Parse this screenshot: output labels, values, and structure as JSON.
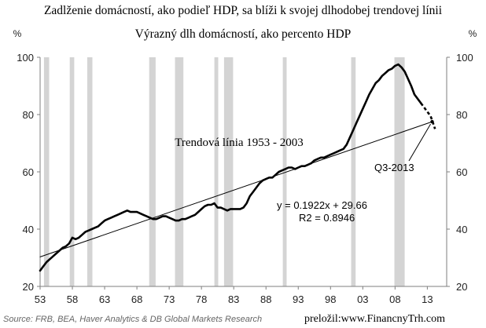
{
  "chart_data": {
    "type": "line",
    "title": "Zadlženie domácností, ako podieľ HDP, sa blíži k svojej dlhodobej trendovej línii",
    "subtitle": "Výrazný dlh domácností, ako percento HDP",
    "y_unit_left": "%",
    "y_unit_right": "%",
    "xlim": [
      1953,
      2016
    ],
    "ylim": [
      20,
      100
    ],
    "x_ticks": [
      {
        "value": 1953,
        "label": "53"
      },
      {
        "value": 1958,
        "label": "58"
      },
      {
        "value": 1963,
        "label": "63"
      },
      {
        "value": 1968,
        "label": "68"
      },
      {
        "value": 1973,
        "label": "73"
      },
      {
        "value": 1978,
        "label": "78"
      },
      {
        "value": 1983,
        "label": "83"
      },
      {
        "value": 1988,
        "label": "88"
      },
      {
        "value": 1993,
        "label": "93"
      },
      {
        "value": 1998,
        "label": "98"
      },
      {
        "value": 2003,
        "label": "03"
      },
      {
        "value": 2008,
        "label": "08"
      },
      {
        "value": 2013,
        "label": "13"
      }
    ],
    "y_ticks": [
      {
        "value": 20,
        "label": "20"
      },
      {
        "value": 40,
        "label": "40"
      },
      {
        "value": 60,
        "label": "60"
      },
      {
        "value": 80,
        "label": "80"
      },
      {
        "value": 100,
        "label": "100"
      }
    ],
    "recessions": [
      [
        1953.6,
        1954.4
      ],
      [
        1957.6,
        1958.3
      ],
      [
        1960.3,
        1961.1
      ],
      [
        1969.9,
        1970.9
      ],
      [
        1973.9,
        1975.2
      ],
      [
        1980.0,
        1980.6
      ],
      [
        1981.5,
        1982.9
      ],
      [
        1990.6,
        1991.2
      ],
      [
        2001.2,
        2001.9
      ],
      [
        2007.9,
        2009.5
      ]
    ],
    "series": [
      {
        "role": "debt",
        "style": "solid",
        "points": [
          [
            1953.0,
            25.5
          ],
          [
            1953.5,
            27.0
          ],
          [
            1954.0,
            28.5
          ],
          [
            1954.5,
            29.5
          ],
          [
            1955.0,
            30.5
          ],
          [
            1955.5,
            31.5
          ],
          [
            1956.0,
            32.5
          ],
          [
            1956.5,
            33.5
          ],
          [
            1957.0,
            34.0
          ],
          [
            1957.5,
            35.0
          ],
          [
            1958.0,
            37.0
          ],
          [
            1958.5,
            36.5
          ],
          [
            1959.0,
            37.0
          ],
          [
            1959.5,
            38.0
          ],
          [
            1960.0,
            39.0
          ],
          [
            1960.5,
            39.5
          ],
          [
            1961.0,
            40.0
          ],
          [
            1961.5,
            40.5
          ],
          [
            1962.0,
            41.0
          ],
          [
            1962.5,
            42.0
          ],
          [
            1963.0,
            43.0
          ],
          [
            1963.5,
            43.5
          ],
          [
            1964.0,
            44.0
          ],
          [
            1964.5,
            44.5
          ],
          [
            1965.0,
            45.0
          ],
          [
            1965.5,
            45.5
          ],
          [
            1966.0,
            46.0
          ],
          [
            1966.5,
            46.5
          ],
          [
            1967.0,
            46.0
          ],
          [
            1967.5,
            46.0
          ],
          [
            1968.0,
            46.0
          ],
          [
            1968.5,
            45.5
          ],
          [
            1969.0,
            45.0
          ],
          [
            1969.5,
            44.5
          ],
          [
            1970.0,
            44.0
          ],
          [
            1970.5,
            43.5
          ],
          [
            1971.0,
            43.5
          ],
          [
            1971.5,
            44.0
          ],
          [
            1972.0,
            44.5
          ],
          [
            1972.5,
            44.5
          ],
          [
            1973.0,
            44.0
          ],
          [
            1973.5,
            43.5
          ],
          [
            1974.0,
            43.0
          ],
          [
            1974.5,
            43.0
          ],
          [
            1975.0,
            43.5
          ],
          [
            1975.5,
            43.5
          ],
          [
            1976.0,
            44.0
          ],
          [
            1976.5,
            44.5
          ],
          [
            1977.0,
            45.0
          ],
          [
            1977.5,
            46.0
          ],
          [
            1978.0,
            47.0
          ],
          [
            1978.5,
            48.0
          ],
          [
            1979.0,
            48.5
          ],
          [
            1979.5,
            48.5
          ],
          [
            1980.0,
            49.0
          ],
          [
            1980.5,
            47.5
          ],
          [
            1981.0,
            47.5
          ],
          [
            1981.5,
            47.0
          ],
          [
            1982.0,
            46.5
          ],
          [
            1982.5,
            47.0
          ],
          [
            1983.0,
            47.0
          ],
          [
            1983.5,
            47.0
          ],
          [
            1984.0,
            47.0
          ],
          [
            1984.5,
            47.5
          ],
          [
            1985.0,
            49.0
          ],
          [
            1985.5,
            51.5
          ],
          [
            1986.0,
            53.0
          ],
          [
            1986.5,
            54.5
          ],
          [
            1987.0,
            56.0
          ],
          [
            1987.5,
            57.0
          ],
          [
            1988.0,
            57.5
          ],
          [
            1988.5,
            58.0
          ],
          [
            1989.0,
            58.0
          ],
          [
            1989.5,
            59.0
          ],
          [
            1990.0,
            60.0
          ],
          [
            1990.5,
            60.5
          ],
          [
            1991.0,
            61.0
          ],
          [
            1991.5,
            61.5
          ],
          [
            1992.0,
            61.5
          ],
          [
            1992.5,
            61.0
          ],
          [
            1993.0,
            61.5
          ],
          [
            1993.5,
            62.0
          ],
          [
            1994.0,
            62.0
          ],
          [
            1994.5,
            62.5
          ],
          [
            1995.0,
            63.0
          ],
          [
            1995.5,
            64.0
          ],
          [
            1996.0,
            64.5
          ],
          [
            1996.5,
            65.0
          ],
          [
            1997.0,
            65.0
          ],
          [
            1997.5,
            65.5
          ],
          [
            1998.0,
            66.0
          ],
          [
            1998.5,
            66.5
          ],
          [
            1999.0,
            67.0
          ],
          [
            1999.5,
            67.5
          ],
          [
            2000.0,
            68.0
          ],
          [
            2000.5,
            69.5
          ],
          [
            2001.0,
            72.0
          ],
          [
            2001.5,
            74.5
          ],
          [
            2002.0,
            77.0
          ],
          [
            2002.5,
            79.5
          ],
          [
            2003.0,
            82.0
          ],
          [
            2003.5,
            84.5
          ],
          [
            2004.0,
            87.0
          ],
          [
            2004.5,
            89.0
          ],
          [
            2005.0,
            91.0
          ],
          [
            2005.5,
            92.0
          ],
          [
            2006.0,
            93.5
          ],
          [
            2006.5,
            94.5
          ],
          [
            2007.0,
            95.5
          ],
          [
            2007.5,
            96.0
          ],
          [
            2008.0,
            97.0
          ],
          [
            2008.5,
            97.5
          ],
          [
            2009.0,
            96.5
          ],
          [
            2009.5,
            95.0
          ],
          [
            2010.0,
            92.5
          ],
          [
            2010.5,
            90.0
          ],
          [
            2011.0,
            87.0
          ],
          [
            2011.5,
            85.5
          ],
          [
            2012.0,
            84.0
          ]
        ]
      },
      {
        "role": "debt-recent",
        "style": "dashed",
        "points": [
          [
            2012.0,
            84.0
          ],
          [
            2012.5,
            82.5
          ],
          [
            2013.0,
            81.0
          ],
          [
            2013.5,
            79.5
          ],
          [
            2013.75,
            78.0
          ],
          [
            2014.2,
            75.0
          ]
        ]
      },
      {
        "role": "trend",
        "style": "thin",
        "points": [
          [
            1953.0,
            30.3
          ],
          [
            2013.75,
            77.5
          ]
        ]
      }
    ],
    "annotations": {
      "trend_label": "Trendová línia 1953 - 2003",
      "equation": "y = 0.1922x + 29.66",
      "r2": "R2 = 0.8946",
      "point_label": "Q3-2013",
      "point_label_x": 2013.75,
      "point_label_y": 77.5
    },
    "grid": false,
    "legend": "none"
  },
  "footer": {
    "source": "Source: FRB, BEA, Haver Analytics & DB Global Markets Research",
    "credit": "preložil:www.FinancnyTrh.com"
  },
  "colors": {
    "line": "#000000",
    "recession": "#d4d4d4",
    "axis": "#7f7f7f",
    "footer_source": "#666666"
  }
}
